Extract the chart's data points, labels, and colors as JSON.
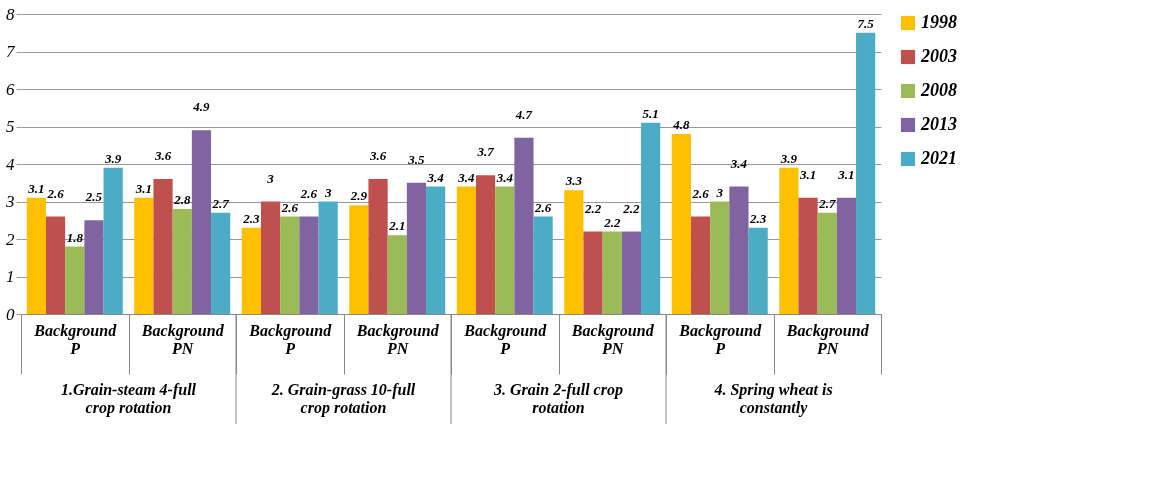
{
  "chart_data": {
    "type": "bar",
    "categories": [
      "Background P",
      "Background PN",
      "Background P",
      "Background PN",
      "Background P",
      "Background PN",
      "Background P",
      "Background PN"
    ],
    "series": [
      {
        "name": "1998",
        "color": "#ffc000",
        "values": [
          3.1,
          3.1,
          2.3,
          2.9,
          3.4,
          3.3,
          4.8,
          3.9
        ]
      },
      {
        "name": "2003",
        "color": "#c0504d",
        "values": [
          2.6,
          3.6,
          3,
          3.6,
          3.7,
          2.2,
          2.6,
          3.1
        ]
      },
      {
        "name": "2008",
        "color": "#9bbb59",
        "values": [
          1.8,
          2.8,
          2.6,
          2.1,
          3.4,
          2.2,
          3,
          2.7
        ]
      },
      {
        "name": "2013",
        "color": "#8064a2",
        "values": [
          2.5,
          4.9,
          2.6,
          3.5,
          4.7,
          2.2,
          3.4,
          3.1
        ]
      },
      {
        "name": "2021",
        "color": "#4bacc6",
        "values": [
          3.9,
          2.7,
          3,
          3.4,
          2.6,
          5.1,
          2.3,
          7.5
        ]
      }
    ],
    "annotations": [
      "1.Grain-steam 4-full crop rotation",
      "2. Grain-grass 10-full crop rotation",
      "3. Grain 2-full crop rotation",
      "4. Spring  wheat is constantly"
    ],
    "ylim": [
      0,
      8
    ],
    "yticks": [
      0,
      1,
      2,
      3,
      4,
      5,
      6,
      7,
      8
    ],
    "grid": "y",
    "legend": "right",
    "data_labels": true
  }
}
